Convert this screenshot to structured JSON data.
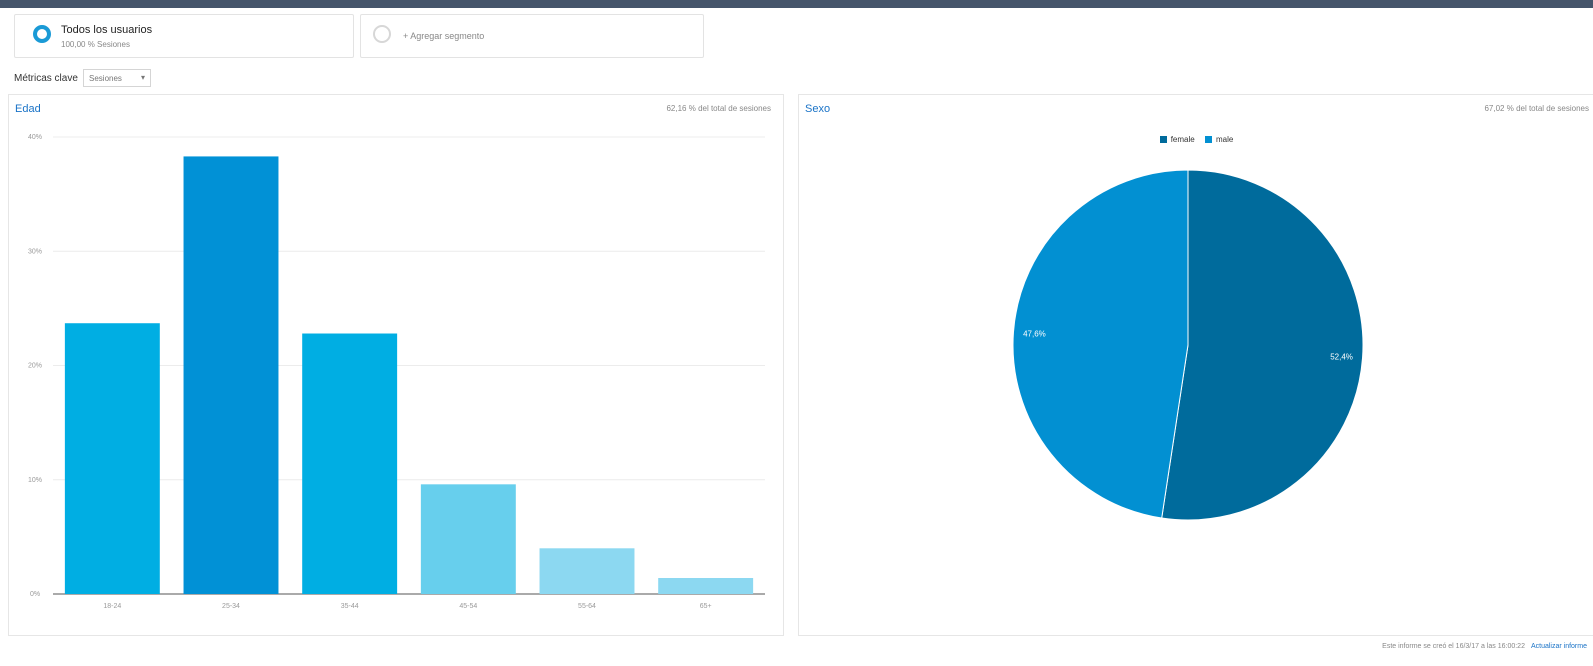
{
  "segments": {
    "all_users": {
      "title": "Todos los usuarios",
      "subtitle": "100,00 % Sesiones"
    },
    "add_label": "+ Agregar segmento"
  },
  "metrics": {
    "label": "Métricas clave",
    "selected": "Sesiones"
  },
  "age_panel": {
    "title": "Edad",
    "note": "62,16 % del total de sesiones"
  },
  "gender_panel": {
    "title": "Sexo",
    "note": "67,02 % del total de sesiones"
  },
  "footer": {
    "text": "Este informe se creó el 16/3/17 a las 16:00:22",
    "link": "Actualizar informe"
  },
  "colors": {
    "bar_dark": "#0191d6",
    "bar_mid": "#00aee3",
    "bar_light": "#67cfed",
    "bar_lighter": "#8cd8f1",
    "female": "#006b9c",
    "male": "#0290d2"
  },
  "chart_data": [
    {
      "type": "bar",
      "title": "Edad",
      "categories": [
        "18-24",
        "25-34",
        "35-44",
        "45-54",
        "55-64",
        "65+"
      ],
      "values": [
        23.7,
        38.3,
        22.8,
        9.6,
        4.0,
        1.4
      ],
      "bar_colors": [
        "#00aee3",
        "#0191d6",
        "#00aee3",
        "#67cfed",
        "#8cd8f1",
        "#8cd8f1"
      ],
      "yticks": [
        "0%",
        "10%",
        "20%",
        "30%",
        "40%"
      ],
      "ylim": [
        0,
        40
      ],
      "grid": true
    },
    {
      "type": "pie",
      "title": "Sexo",
      "slices": [
        {
          "name": "female",
          "value": 52.4,
          "label": "52,4%",
          "color": "#006b9c"
        },
        {
          "name": "male",
          "value": 47.6,
          "label": "47,6%",
          "color": "#0290d2"
        }
      ],
      "legend_position": "top-center"
    }
  ]
}
